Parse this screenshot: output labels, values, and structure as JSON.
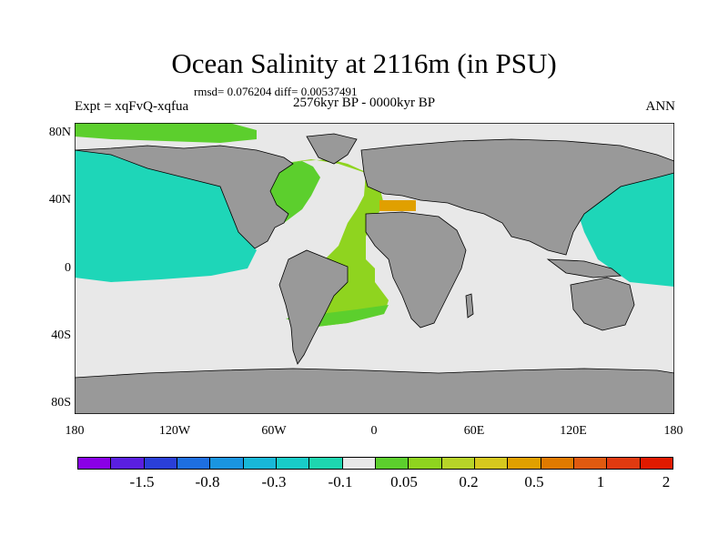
{
  "title": "Ocean Salinity at 2116m (in PSU)",
  "stats": "rmsd= 0.076204 diff= 0.00537491",
  "expt": "Expt = xqFvQ-xqfua",
  "period": "2576kyr BP - 0000kyr BP",
  "season": "ANN",
  "map": {
    "lat_ticks": [
      "80N",
      "40N",
      "0",
      "40S",
      "80S"
    ],
    "lon_ticks": [
      "180",
      "120W",
      "60W",
      "0",
      "60E",
      "120E",
      "180"
    ],
    "land_color": "#999999",
    "ocean_colors": {
      "near_zero": "#e8e8e8",
      "pacific_negative": "#1ed6b8",
      "atlantic_positive": "#8fd41f",
      "atlantic_upper": "#5ccf2d",
      "mediterranean": "#e0a000"
    }
  },
  "colorbar": {
    "labels": [
      "-1.5",
      "-0.8",
      "-0.3",
      "-0.1",
      "0.05",
      "0.2",
      "0.5",
      "1",
      "2"
    ],
    "colors": [
      "#8a00e6",
      "#5a1fe0",
      "#2a3fd8",
      "#1e6fe0",
      "#1a95e0",
      "#18b8d8",
      "#18ccc8",
      "#1ed6b0",
      "#e8e8e8",
      "#5ccf2d",
      "#8fd41f",
      "#b8d428",
      "#d6c81e",
      "#e0a000",
      "#e07a00",
      "#e05a10",
      "#e03a10",
      "#e01a00"
    ]
  }
}
